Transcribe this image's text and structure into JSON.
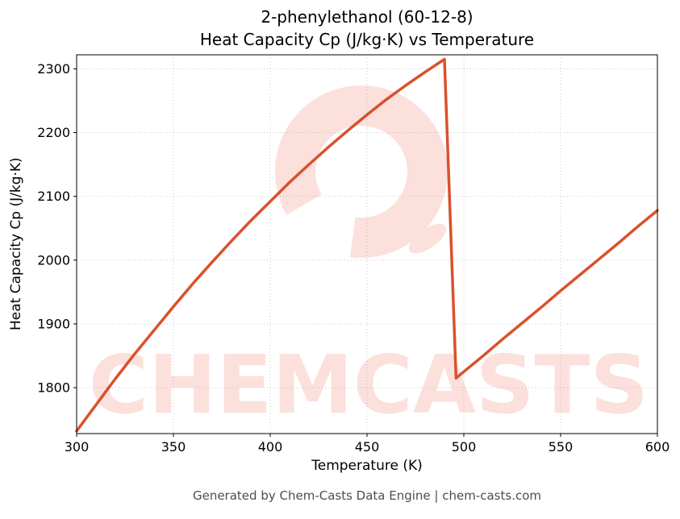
{
  "title": {
    "line1": "2-phenylethanol (60-12-8)",
    "line2": "Heat Capacity Cp (J/kg·K) vs Temperature"
  },
  "footer": "Generated by Chem-Casts Data Engine | chem-casts.com",
  "watermark": {
    "text": "CHEMCASTS",
    "color": "#e8533a",
    "opacity": 0.18
  },
  "colors": {
    "line": "#d9512c",
    "grid": "#c9c9c9",
    "spine": "#000000",
    "tick": "#000000",
    "footer_text": "#4d4d4d"
  },
  "chart_data": {
    "type": "line",
    "title": "2-phenylethanol (60-12-8)\nHeat Capacity Cp (J/kg·K) vs Temperature",
    "xlabel": "Temperature (K)",
    "ylabel": "Heat Capacity Cp (J/kg·K)",
    "xlim": [
      300,
      600
    ],
    "ylim": [
      1728,
      2322
    ],
    "x_ticks": [
      300,
      350,
      400,
      450,
      500,
      550,
      600
    ],
    "y_ticks": [
      1800,
      1900,
      2000,
      2100,
      2200,
      2300
    ],
    "grid": true,
    "legend": false,
    "series": [
      {
        "name": "Heat Capacity Cp",
        "points": [
          [
            300,
            1732
          ],
          [
            310,
            1773
          ],
          [
            320,
            1814
          ],
          [
            330,
            1853
          ],
          [
            340,
            1890
          ],
          [
            350,
            1927
          ],
          [
            360,
            1963
          ],
          [
            370,
            1997
          ],
          [
            380,
            2030
          ],
          [
            390,
            2062
          ],
          [
            400,
            2092
          ],
          [
            410,
            2122
          ],
          [
            420,
            2150
          ],
          [
            430,
            2177
          ],
          [
            440,
            2203
          ],
          [
            450,
            2228
          ],
          [
            460,
            2252
          ],
          [
            470,
            2274
          ],
          [
            480,
            2295
          ],
          [
            490,
            2315
          ],
          [
            496,
            1815
          ],
          [
            500,
            1825
          ],
          [
            510,
            1850
          ],
          [
            520,
            1876
          ],
          [
            530,
            1901
          ],
          [
            540,
            1926
          ],
          [
            550,
            1952
          ],
          [
            560,
            1977
          ],
          [
            570,
            2002
          ],
          [
            580,
            2027
          ],
          [
            590,
            2053
          ],
          [
            600,
            2078
          ]
        ]
      }
    ]
  }
}
